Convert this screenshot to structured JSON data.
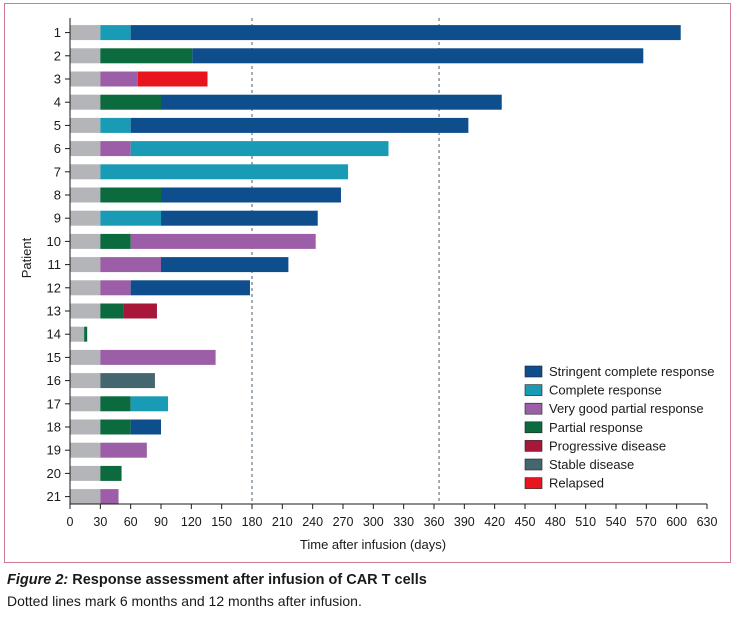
{
  "chart_data": {
    "type": "bar",
    "orientation": "horizontal",
    "stacked": true,
    "ylabel": "Patient",
    "xlabel": "Time after infusion (days)",
    "xlim": [
      0,
      630
    ],
    "xticks": [
      0,
      30,
      60,
      90,
      120,
      150,
      180,
      210,
      240,
      270,
      300,
      330,
      360,
      390,
      420,
      450,
      480,
      510,
      540,
      570,
      600,
      630
    ],
    "reference_lines": [
      180,
      365
    ],
    "colors": {
      "pre": "#b3b5b8",
      "Stringent complete response": "#0e4e8c",
      "Complete response": "#1a9bb5",
      "Very good partial response": "#9c5ea6",
      "Partial response": "#0b6a3e",
      "Progressive disease": "#a8163a",
      "Stable disease": "#44666e",
      "Relapsed": "#e8151e"
    },
    "legend": {
      "position": "bottom-right",
      "entries": [
        "Stringent complete response",
        "Complete response",
        "Very good partial response",
        "Partial response",
        "Progressive disease",
        "Stable disease",
        "Relapsed"
      ]
    },
    "patients": [
      {
        "label": "1",
        "segments": [
          {
            "status": "pre",
            "start": 0,
            "end": 30
          },
          {
            "status": "Complete response",
            "start": 30,
            "end": 60
          },
          {
            "status": "Stringent complete response",
            "start": 60,
            "end": 604
          }
        ]
      },
      {
        "label": "2",
        "segments": [
          {
            "status": "pre",
            "start": 0,
            "end": 30
          },
          {
            "status": "Partial response",
            "start": 30,
            "end": 121
          },
          {
            "status": "Stringent complete response",
            "start": 121,
            "end": 567
          }
        ]
      },
      {
        "label": "3",
        "segments": [
          {
            "status": "pre",
            "start": 0,
            "end": 30
          },
          {
            "status": "Very good partial response",
            "start": 30,
            "end": 67
          },
          {
            "status": "Relapsed",
            "start": 67,
            "end": 136
          }
        ]
      },
      {
        "label": "4",
        "segments": [
          {
            "status": "pre",
            "start": 0,
            "end": 30
          },
          {
            "status": "Partial response",
            "start": 30,
            "end": 90
          },
          {
            "status": "Stringent complete response",
            "start": 90,
            "end": 427
          }
        ]
      },
      {
        "label": "5",
        "segments": [
          {
            "status": "pre",
            "start": 0,
            "end": 30
          },
          {
            "status": "Complete response",
            "start": 30,
            "end": 60
          },
          {
            "status": "Stringent complete response",
            "start": 60,
            "end": 394
          }
        ]
      },
      {
        "label": "6",
        "segments": [
          {
            "status": "pre",
            "start": 0,
            "end": 30
          },
          {
            "status": "Very good partial response",
            "start": 30,
            "end": 60
          },
          {
            "status": "Complete response",
            "start": 60,
            "end": 315
          }
        ]
      },
      {
        "label": "7",
        "segments": [
          {
            "status": "pre",
            "start": 0,
            "end": 30
          },
          {
            "status": "Complete response",
            "start": 30,
            "end": 275
          }
        ]
      },
      {
        "label": "8",
        "segments": [
          {
            "status": "pre",
            "start": 0,
            "end": 30
          },
          {
            "status": "Partial response",
            "start": 30,
            "end": 90
          },
          {
            "status": "Stringent complete response",
            "start": 90,
            "end": 268
          }
        ]
      },
      {
        "label": "9",
        "segments": [
          {
            "status": "pre",
            "start": 0,
            "end": 30
          },
          {
            "status": "Complete response",
            "start": 30,
            "end": 90
          },
          {
            "status": "Stringent complete response",
            "start": 90,
            "end": 245
          }
        ]
      },
      {
        "label": "10",
        "segments": [
          {
            "status": "pre",
            "start": 0,
            "end": 30
          },
          {
            "status": "Partial response",
            "start": 30,
            "end": 60
          },
          {
            "status": "Very good partial response",
            "start": 60,
            "end": 243
          }
        ]
      },
      {
        "label": "11",
        "segments": [
          {
            "status": "pre",
            "start": 0,
            "end": 30
          },
          {
            "status": "Very good partial response",
            "start": 30,
            "end": 90
          },
          {
            "status": "Stringent complete response",
            "start": 90,
            "end": 216
          }
        ]
      },
      {
        "label": "12",
        "segments": [
          {
            "status": "pre",
            "start": 0,
            "end": 30
          },
          {
            "status": "Very good partial response",
            "start": 30,
            "end": 60
          },
          {
            "status": "Stringent complete response",
            "start": 60,
            "end": 178
          }
        ]
      },
      {
        "label": "13",
        "segments": [
          {
            "status": "pre",
            "start": 0,
            "end": 30
          },
          {
            "status": "Partial response",
            "start": 30,
            "end": 53
          },
          {
            "status": "Progressive disease",
            "start": 53,
            "end": 86
          }
        ]
      },
      {
        "label": "14",
        "segments": [
          {
            "status": "pre",
            "start": 0,
            "end": 14
          },
          {
            "status": "Partial response",
            "start": 14,
            "end": 17
          }
        ]
      },
      {
        "label": "15",
        "segments": [
          {
            "status": "pre",
            "start": 0,
            "end": 30
          },
          {
            "status": "Very good partial response",
            "start": 30,
            "end": 144
          }
        ]
      },
      {
        "label": "16",
        "segments": [
          {
            "status": "pre",
            "start": 0,
            "end": 30
          },
          {
            "status": "Stable disease",
            "start": 30,
            "end": 84
          }
        ]
      },
      {
        "label": "17",
        "segments": [
          {
            "status": "pre",
            "start": 0,
            "end": 30
          },
          {
            "status": "Partial response",
            "start": 30,
            "end": 60
          },
          {
            "status": "Complete response",
            "start": 60,
            "end": 97
          }
        ]
      },
      {
        "label": "18",
        "segments": [
          {
            "status": "pre",
            "start": 0,
            "end": 30
          },
          {
            "status": "Partial response",
            "start": 30,
            "end": 60
          },
          {
            "status": "Stringent complete response",
            "start": 60,
            "end": 90
          }
        ]
      },
      {
        "label": "19",
        "segments": [
          {
            "status": "pre",
            "start": 0,
            "end": 30
          },
          {
            "status": "Very good partial response",
            "start": 30,
            "end": 76
          }
        ]
      },
      {
        "label": "20",
        "segments": [
          {
            "status": "pre",
            "start": 0,
            "end": 30
          },
          {
            "status": "Partial response",
            "start": 30,
            "end": 51
          }
        ]
      },
      {
        "label": "21",
        "segments": [
          {
            "status": "pre",
            "start": 0,
            "end": 30
          },
          {
            "status": "Very good partial response",
            "start": 30,
            "end": 48
          }
        ]
      }
    ]
  },
  "caption": {
    "figure_label": "Figure 2:",
    "title": " Response assessment after infusion of CAR T cells",
    "note": "Dotted lines mark 6 months and 12 months after infusion."
  }
}
